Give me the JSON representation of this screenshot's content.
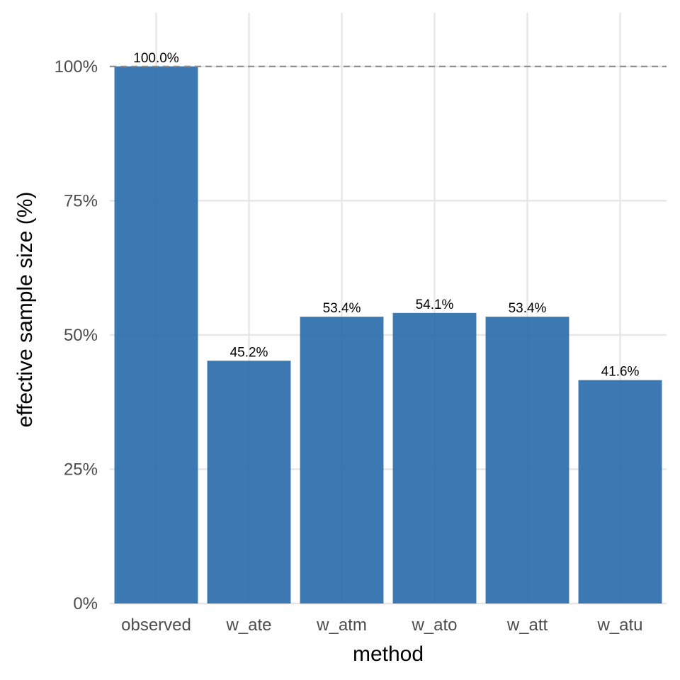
{
  "chart_data": {
    "type": "bar",
    "categories": [
      "observed",
      "w_ate",
      "w_atm",
      "w_ato",
      "w_att",
      "w_atu"
    ],
    "values": [
      100.0,
      45.2,
      53.4,
      54.1,
      53.4,
      41.6
    ],
    "data_labels": [
      "100.0%",
      "45.2%",
      "53.4%",
      "54.1%",
      "53.4%",
      "41.6%"
    ],
    "xlabel": "method",
    "ylabel": "effective sample size (%)",
    "ylim": [
      0,
      110
    ],
    "yticks": [
      0,
      25,
      50,
      75,
      100
    ],
    "ytick_labels": [
      "0%",
      "25%",
      "50%",
      "75%",
      "100%"
    ],
    "reference_line": 100,
    "grid": true,
    "colors": {
      "bar": "#2b6ead",
      "reference_line": "#8c8c8c",
      "grid": "#e6e6e6"
    }
  }
}
